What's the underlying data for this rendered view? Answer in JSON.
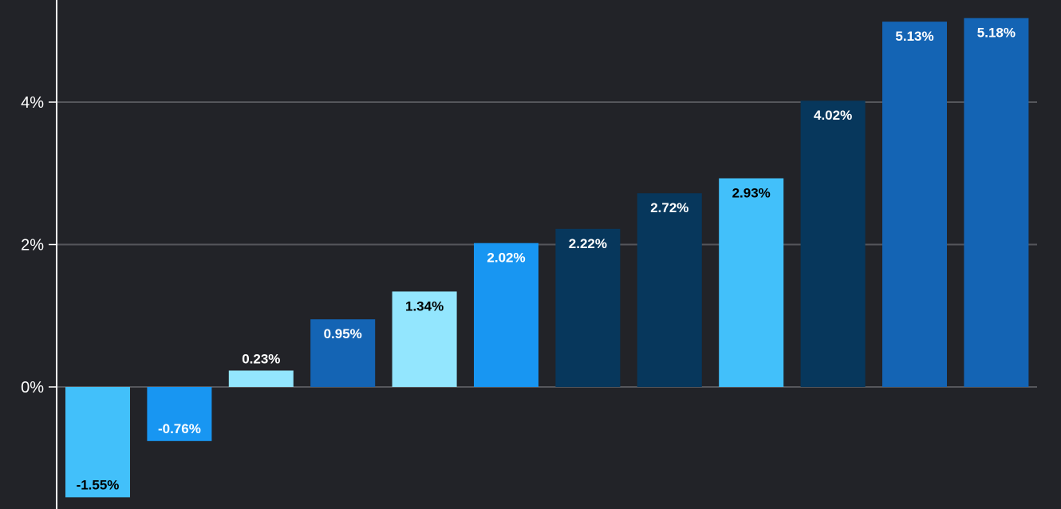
{
  "chart_data": {
    "type": "bar",
    "title": "",
    "xlabel": "",
    "ylabel": "",
    "ylim": [
      -1.7,
      5.4
    ],
    "grid": true,
    "legend": "none",
    "y_ticks": [
      {
        "value": 0,
        "label": "0%"
      },
      {
        "value": 2,
        "label": "2%"
      },
      {
        "value": 4,
        "label": "4%"
      }
    ],
    "values": [
      -1.55,
      -0.76,
      0.23,
      0.95,
      1.34,
      2.02,
      2.22,
      2.72,
      2.93,
      4.02,
      5.13,
      5.18
    ],
    "data_labels": [
      "-1.55%",
      "-0.76%",
      "0.23%",
      "0.95%",
      "1.34%",
      "2.02%",
      "2.22%",
      "2.72%",
      "2.93%",
      "4.02%",
      "5.13%",
      "5.18%"
    ],
    "bar_colors": [
      "#42C0FA",
      "#1896F2",
      "#93E6FE",
      "#1464B4",
      "#93E6FE",
      "#1896F2",
      "#07375C",
      "#07375C",
      "#42C0FA",
      "#07375C",
      "#1464B4",
      "#1464B4"
    ],
    "label_colors": [
      "#000000",
      "#ffffff",
      "#000000",
      "#ffffff",
      "#000000",
      "#ffffff",
      "#ffffff",
      "#ffffff",
      "#000000",
      "#ffffff",
      "#ffffff",
      "#ffffff"
    ]
  },
  "colors": {
    "background": "#222328",
    "gridline": "#55565B",
    "axis": "#ffffff",
    "text": "#ffffff"
  }
}
